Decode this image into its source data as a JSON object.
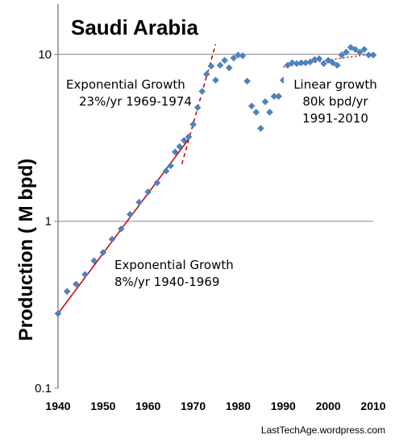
{
  "chart_data": {
    "type": "scatter",
    "title": "Saudi Arabia",
    "xlabel": "",
    "ylabel": "Production ( M  bpd)",
    "xlim": [
      1940,
      2010
    ],
    "ylim": [
      0.1,
      20
    ],
    "yscale": "log",
    "x_ticks": [
      "1940",
      "1950",
      "1960",
      "1970",
      "1980",
      "1990",
      "2000",
      "2010"
    ],
    "y_ticks": [
      "0.1",
      "1",
      "10"
    ],
    "grid": "horizontal at 1 and 10",
    "marker_color": "#4f81bd",
    "trend_color": "#c00000",
    "series": [
      {
        "x": [
          1940,
          1942,
          1944,
          1946,
          1948,
          1950,
          1952,
          1954,
          1956,
          1958,
          1960,
          1962,
          1964,
          1965,
          1966,
          1967,
          1968,
          1969,
          1970,
          1971,
          1972,
          1973,
          1974,
          1975,
          1976,
          1977,
          1978,
          1979,
          1980,
          1981,
          1982,
          1983,
          1984,
          1985,
          1986,
          1987,
          1988,
          1989,
          1990,
          1991,
          1992,
          1993,
          1994,
          1995,
          1996,
          1997,
          1998,
          1999,
          2000,
          2001,
          2002,
          2003,
          2004,
          2005,
          2006,
          2007,
          2008,
          2009,
          2010
        ],
        "y": [
          0.28,
          0.38,
          0.42,
          0.48,
          0.58,
          0.65,
          0.78,
          0.9,
          1.1,
          1.3,
          1.5,
          1.7,
          2.0,
          2.15,
          2.6,
          2.8,
          3.05,
          3.2,
          3.8,
          4.8,
          6.0,
          7.6,
          8.5,
          7.0,
          8.6,
          9.2,
          8.3,
          9.5,
          9.9,
          9.8,
          6.9,
          4.9,
          4.5,
          3.6,
          5.2,
          4.5,
          5.6,
          5.6,
          7.0,
          8.6,
          8.9,
          8.8,
          8.9,
          8.9,
          9.0,
          9.3,
          9.4,
          8.8,
          9.2,
          8.9,
          8.6,
          9.9,
          10.3,
          11.0,
          10.7,
          10.3,
          10.7,
          9.9,
          9.9
        ]
      }
    ],
    "trend_lines": [
      {
        "x": [
          1940,
          1969
        ],
        "y": [
          0.28,
          3.1
        ]
      },
      {
        "x": [
          1967.5,
          1975
        ],
        "y": [
          2.2,
          11.5
        ]
      },
      {
        "x": [
          1990,
          2010
        ],
        "y": [
          8.4,
          10.1
        ]
      }
    ],
    "annotations": [
      {
        "lines": [
          "Exponential Growth",
          "23%/yr  1969-1974"
        ],
        "at_x": 1967.5,
        "at_y": 6.5
      },
      {
        "lines": [
          "Linear growth",
          "80k  bpd/yr",
          "1991-2010"
        ],
        "at_x": 2002,
        "at_y": 5.1
      },
      {
        "lines": [
          "Exponential  Growth",
          "8%/yr  1940-1969"
        ],
        "at_x": 1965,
        "at_y": 0.55
      }
    ],
    "credit": "LastTechAge.wordpress.com"
  }
}
